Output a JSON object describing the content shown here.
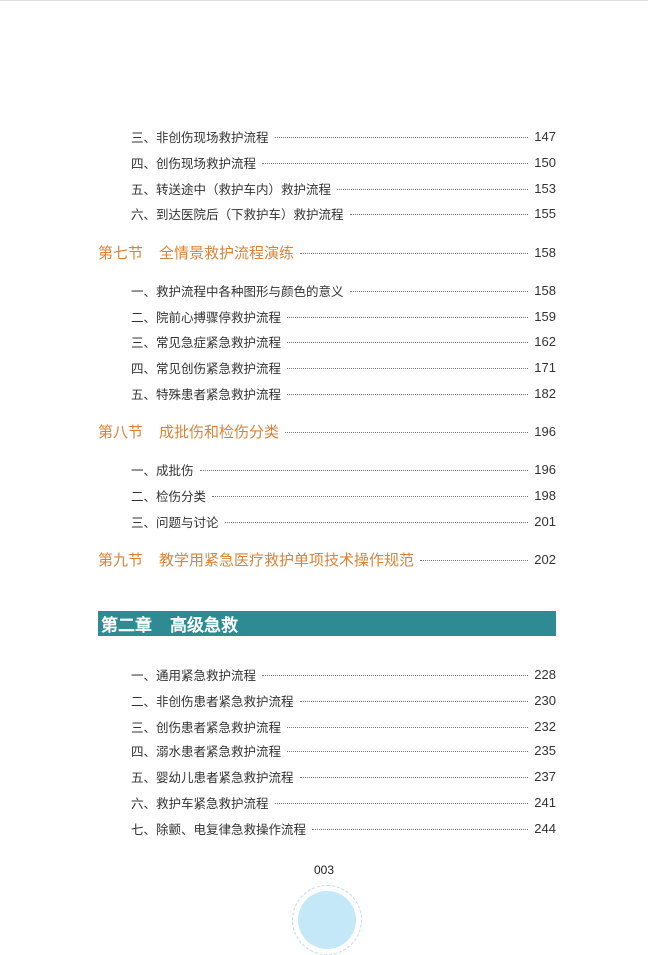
{
  "groups1": [
    {
      "label": "三、非创伤现场救护流程",
      "page": "147"
    },
    {
      "label": "四、创伤现场救护流程",
      "page": "150"
    },
    {
      "label": "五、转送途中（救护车内）救护流程",
      "page": "153"
    },
    {
      "label": "六、到达医院后（下救护车）救护流程",
      "page": "155"
    }
  ],
  "sections": [
    {
      "num": "第七节",
      "title": "全情景救护流程演练",
      "page": "158"
    },
    {
      "num": "第八节",
      "title": "成批伤和检伤分类",
      "page": "196"
    },
    {
      "num": "第九节",
      "title": "教学用紧急医疗救护单项技术操作规范",
      "page": "202"
    }
  ],
  "sec7_items": [
    {
      "label": "一、救护流程中各种图形与颜色的意义",
      "page": "158"
    },
    {
      "label": "二、院前心搏骤停救护流程",
      "page": "159"
    },
    {
      "label": "三、常见急症紧急救护流程",
      "page": "162"
    },
    {
      "label": "四、常见创伤紧急救护流程",
      "page": "171"
    },
    {
      "label": "五、特殊患者紧急救护流程",
      "page": "182"
    }
  ],
  "sec8_items": [
    {
      "label": "一、成批伤",
      "page": "196"
    },
    {
      "label": "二、检伤分类",
      "page": "198"
    },
    {
      "label": "三、问题与讨论",
      "page": "201"
    }
  ],
  "chapter": {
    "num": "第二章",
    "title": "高级急救",
    "color": "#2e8b94"
  },
  "chapter_items": [
    {
      "label": "一、通用紧急救护流程",
      "page": "228"
    },
    {
      "label": "二、非创伤患者紧急救护流程",
      "page": "230"
    },
    {
      "label": "三、创伤患者紧急救护流程",
      "page": "232"
    },
    {
      "label": "四、溺水患者紧急救护流程",
      "page": "235"
    },
    {
      "label": "五、婴幼儿患者紧急救护流程",
      "page": "237"
    },
    {
      "label": "六、救护车紧急救护流程",
      "page": "241"
    },
    {
      "label": "七、除颤、电复律急救操作流程",
      "page": "244"
    }
  ],
  "page_number": "003",
  "colors": {
    "section": "#d9843a",
    "chapter_bar": "#2e8b94"
  }
}
